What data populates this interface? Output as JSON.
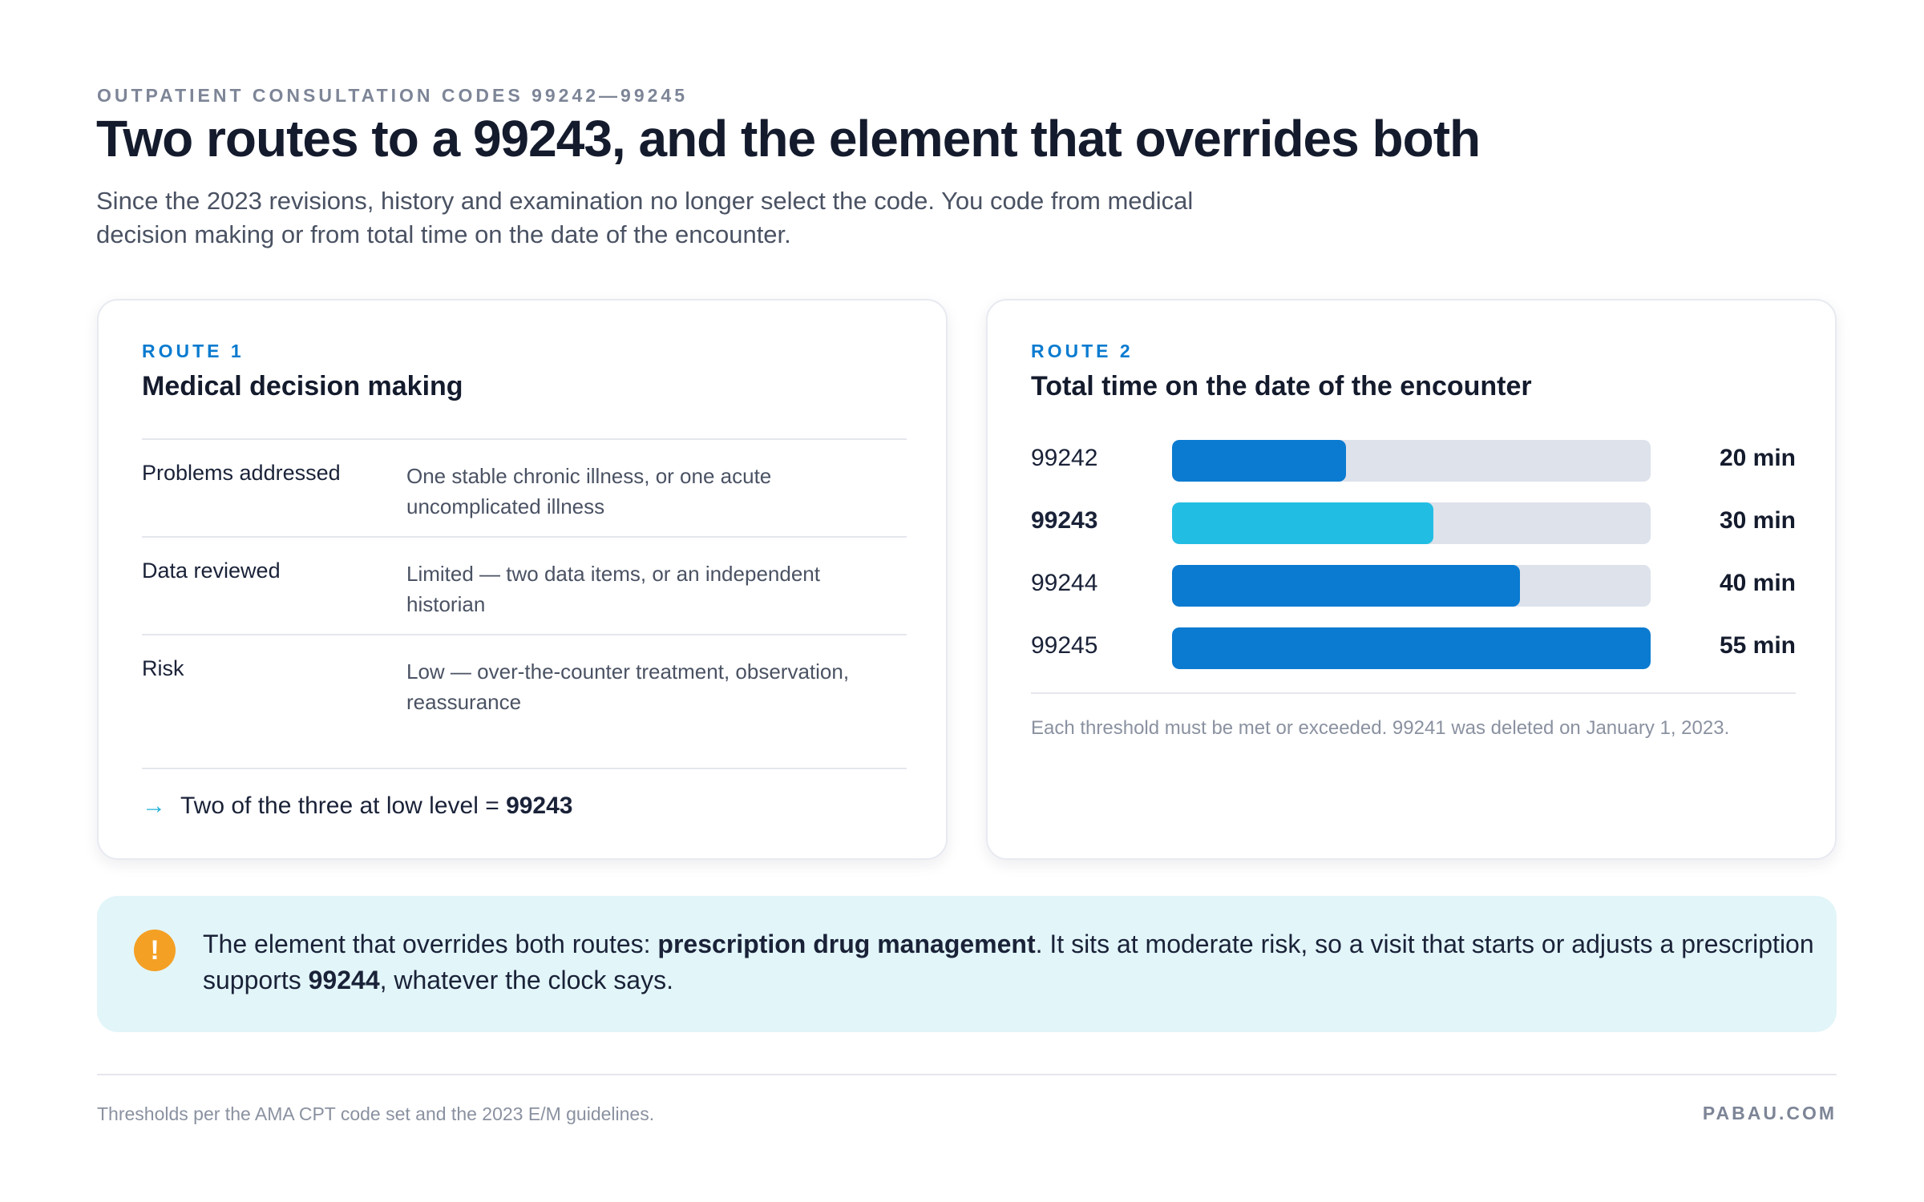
{
  "header": {
    "eyebrow": "OUTPATIENT CONSULTATION CODES 99242—99245",
    "title": "Two routes to a 99243, and the element that overrides both",
    "subtitle": "Since the 2023 revisions, history and examination no longer select the code. You code from medical decision making or from total time on the date of the encounter."
  },
  "route1": {
    "label": "ROUTE 1",
    "title": "Medical decision making",
    "rows": [
      {
        "label": "Problems addressed",
        "desc": "One stable chronic illness, or one acute uncomplicated illness"
      },
      {
        "label": "Data reviewed",
        "desc": "Limited — two data items, or an independent historian"
      },
      {
        "label": "Risk",
        "desc": "Low — over-the-counter treatment, observation, reassurance"
      }
    ],
    "result_arrow": "→",
    "result_text": "Two of the three at low level = ",
    "result_code": "99243"
  },
  "route2": {
    "label": "ROUTE 2",
    "title": "Total time on the date of the encounter",
    "note": "Each threshold must be met or exceeded. 99241 was deleted on January 1, 2023."
  },
  "chart_data": {
    "type": "bar",
    "orientation": "horizontal",
    "categories": [
      "99242",
      "99243",
      "99244",
      "99245"
    ],
    "values": [
      20,
      30,
      40,
      55
    ],
    "value_labels": [
      "20 min",
      "30 min",
      "40 min",
      "55 min"
    ],
    "highlight": "99243",
    "xlim": [
      0,
      55
    ],
    "colors": {
      "default": "#0a7bd0",
      "highlight": "#22bde3",
      "track": "#dde2eb"
    }
  },
  "callout": {
    "badge": "!",
    "prefix": "The element that overrides both routes: ",
    "emphasis": "prescription drug management",
    "middle": ". It sits at moderate risk, so a visit that starts or adjusts a prescription supports ",
    "code": "99244",
    "suffix": ", whatever the clock says."
  },
  "footer": {
    "source": "Thresholds per the AMA CPT code set and the 2023 E/M guidelines.",
    "brand": "PABAU.COM"
  }
}
